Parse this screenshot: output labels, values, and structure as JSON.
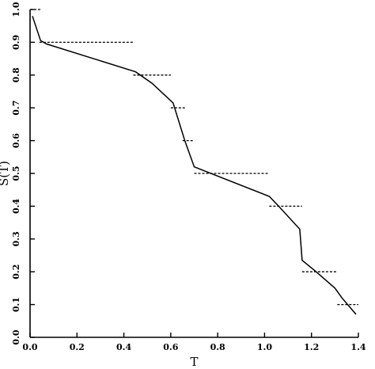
{
  "chart_data": {
    "type": "line",
    "xlabel": "T",
    "ylabel": "S(T)",
    "xlim": [
      0.0,
      1.4
    ],
    "ylim": [
      0.0,
      1.0
    ],
    "x_ticks": [
      "0.0",
      "0.2",
      "0.4",
      "0.6",
      "0.8",
      "1.0",
      "1.2",
      "1.4"
    ],
    "x_tick_values": [
      0.0,
      0.2,
      0.4,
      0.6,
      0.8,
      1.0,
      1.2,
      1.4
    ],
    "y_ticks": [
      "0.0",
      "0.1",
      "0.2",
      "0.3",
      "0.4",
      "0.5",
      "0.6",
      "0.7",
      "0.8",
      "0.9",
      "1.0"
    ],
    "y_tick_values": [
      0.0,
      0.1,
      0.2,
      0.3,
      0.4,
      0.5,
      0.6,
      0.7,
      0.8,
      0.9,
      1.0
    ],
    "grid": false,
    "series": [
      {
        "style": "solid",
        "x": [
          0.01,
          0.045,
          0.07,
          0.45,
          0.52,
          0.61,
          0.66,
          0.7,
          1.02,
          1.06,
          1.15,
          1.16,
          1.22,
          1.3,
          1.33,
          1.39
        ],
        "y": [
          0.98,
          0.905,
          0.895,
          0.81,
          0.775,
          0.715,
          0.6,
          0.52,
          0.43,
          0.4,
          0.33,
          0.235,
          0.2,
          0.15,
          0.12,
          0.07
        ]
      }
    ],
    "reference_segments": [
      {
        "x0": 0.0,
        "x1": 0.05,
        "y": 1.0
      },
      {
        "x0": 0.04,
        "x1": 0.44,
        "y": 0.9
      },
      {
        "x0": 0.44,
        "x1": 0.6,
        "y": 0.8
      },
      {
        "x0": 0.6,
        "x1": 0.66,
        "y": 0.7
      },
      {
        "x0": 0.65,
        "x1": 0.7,
        "y": 0.6
      },
      {
        "x0": 0.7,
        "x1": 1.02,
        "y": 0.5
      },
      {
        "x0": 1.02,
        "x1": 1.16,
        "y": 0.4
      },
      {
        "x0": 1.16,
        "x1": 1.31,
        "y": 0.2
      },
      {
        "x0": 1.31,
        "x1": 1.4,
        "y": 0.1
      }
    ]
  }
}
